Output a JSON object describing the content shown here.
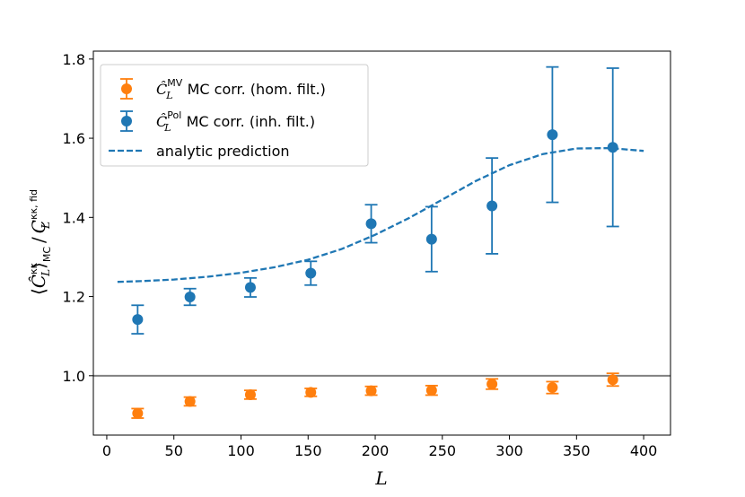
{
  "chart_data": {
    "type": "scatter",
    "xlabel": "L",
    "ylabel": {
      "bracket_open": "⟨",
      "c_hat": "Ĉ",
      "c": "C",
      "sub_l": "L",
      "sup_kk": "κκ",
      "sup_kk_fid": "κκ, fid",
      "sub_mc": "MC",
      "bracket_close": "⟩",
      "slash": "/"
    },
    "xlim": [
      -10,
      420
    ],
    "ylim": [
      0.85,
      1.82
    ],
    "xticks": [
      0,
      50,
      100,
      150,
      200,
      250,
      300,
      350,
      400
    ],
    "xtick_labels": [
      "0",
      "50",
      "100",
      "150",
      "200",
      "250",
      "300",
      "350",
      "400"
    ],
    "yticks": [
      1.0,
      1.2,
      1.4,
      1.6,
      1.8
    ],
    "ytick_labels": [
      "1.0",
      "1.2",
      "1.4",
      "1.6",
      "1.8"
    ],
    "reference_line": {
      "y": 1.0,
      "color": "#808080"
    },
    "series": [
      {
        "name": "MV",
        "legend_symbol": "Ĉ",
        "legend_sub": "L",
        "legend_sup": "MV",
        "legend_text": "MC corr. (hom. filt.)",
        "color": "#ff7f0e",
        "x": [
          23,
          62,
          107,
          152,
          197,
          242,
          287,
          332,
          377
        ],
        "y": [
          0.905,
          0.935,
          0.952,
          0.958,
          0.962,
          0.963,
          0.979,
          0.97,
          0.99
        ],
        "yerr": [
          0.012,
          0.011,
          0.011,
          0.01,
          0.011,
          0.012,
          0.013,
          0.015,
          0.016
        ]
      },
      {
        "name": "Pol",
        "legend_symbol": "Ĉ",
        "legend_sub": "L",
        "legend_sup": "Pol",
        "legend_text": "MC corr. (inh. filt.)",
        "color": "#1f77b4",
        "x": [
          23,
          62,
          107,
          152,
          197,
          242,
          287,
          332,
          377
        ],
        "y": [
          1.142,
          1.199,
          1.223,
          1.259,
          1.384,
          1.345,
          1.429,
          1.609,
          1.577
        ],
        "yerr": [
          0.036,
          0.021,
          0.024,
          0.03,
          0.048,
          0.082,
          0.121,
          0.171,
          0.2
        ]
      }
    ],
    "prediction": {
      "name": "analytic prediction",
      "color": "#1f77b4",
      "style": "dashed",
      "x": [
        8,
        25,
        50,
        75,
        100,
        125,
        150,
        175,
        200,
        225,
        250,
        275,
        300,
        325,
        350,
        375,
        400
      ],
      "y": [
        1.237,
        1.239,
        1.243,
        1.25,
        1.26,
        1.274,
        1.293,
        1.32,
        1.356,
        1.398,
        1.445,
        1.492,
        1.532,
        1.56,
        1.574,
        1.575,
        1.568
      ]
    },
    "legend_location": "top-left"
  }
}
